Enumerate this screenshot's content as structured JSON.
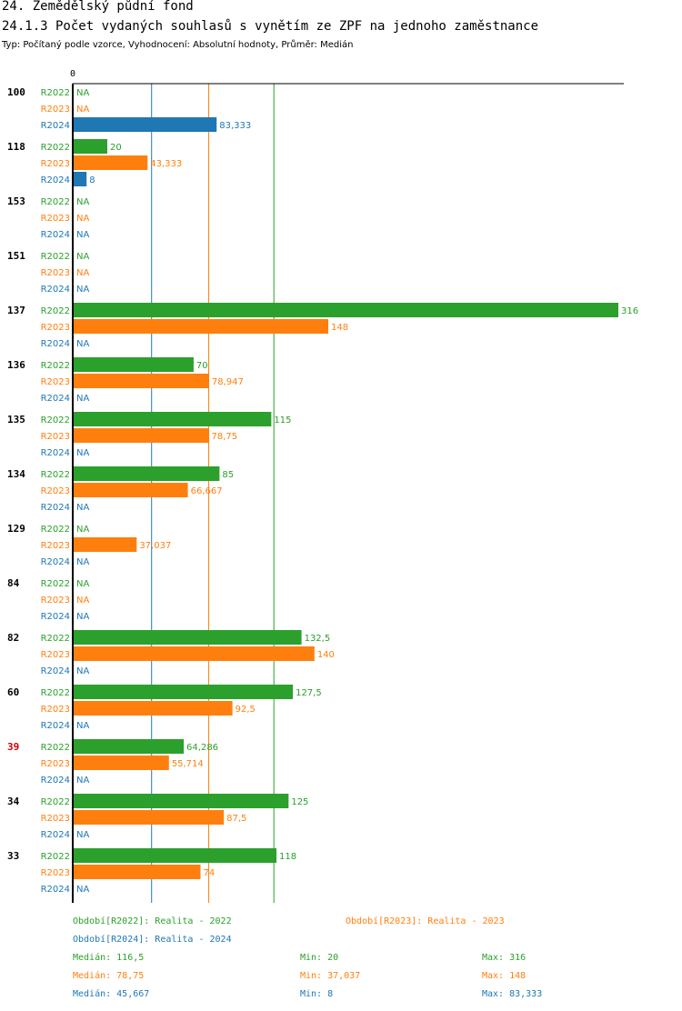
{
  "section_title": "24. Zemědělský půdní fond",
  "chart_title": "24.1.3 Počet vydaných souhlasů s vynětím ze ZPF na jednoho zaměstnance",
  "subtitle": "Typ: Počítaný podle vzorce, Vyhodnocení: Absolutní hodnoty, Průměr: Medián",
  "colors": {
    "R2022": "#2ca02c",
    "R2023": "#ff7f0e",
    "R2024": "#1f77b4",
    "highlight": "#cc0000"
  },
  "chart_data": {
    "type": "bar",
    "orientation": "horizontal",
    "axis_zero_label": "0",
    "xlim": [
      0,
      316
    ],
    "na_label": "NA",
    "categories": [
      "100",
      "118",
      "153",
      "151",
      "137",
      "136",
      "135",
      "134",
      "129",
      "84",
      "82",
      "60",
      "39",
      "34",
      "33"
    ],
    "highlight_category": "39",
    "series": [
      {
        "name": "R2022",
        "values": [
          null,
          20,
          null,
          null,
          316,
          70,
          115,
          85,
          null,
          null,
          132.5,
          127.5,
          64.286,
          125,
          118
        ],
        "labels": [
          "NA",
          "20",
          "NA",
          "NA",
          "316",
          "70",
          "115",
          "85",
          "NA",
          "NA",
          "132,5",
          "127,5",
          "64,286",
          "125",
          "118"
        ]
      },
      {
        "name": "R2023",
        "values": [
          null,
          43.333,
          null,
          null,
          148,
          78.947,
          78.75,
          66.667,
          37.037,
          null,
          140,
          92.5,
          55.714,
          87.5,
          74
        ],
        "labels": [
          "NA",
          "43,333",
          "NA",
          "NA",
          "148",
          "78,947",
          "78,75",
          "66,667",
          "37,037",
          "NA",
          "140",
          "92,5",
          "55,714",
          "87,5",
          "74"
        ]
      },
      {
        "name": "R2024",
        "values": [
          83.333,
          8,
          null,
          null,
          null,
          null,
          null,
          null,
          null,
          null,
          null,
          null,
          null,
          null,
          null
        ],
        "labels": [
          "83,333",
          "8",
          "NA",
          "NA",
          "NA",
          "NA",
          "NA",
          "NA",
          "NA",
          "NA",
          "NA",
          "NA",
          "NA",
          "NA",
          "NA"
        ]
      }
    ],
    "reference_lines": [
      {
        "series": "R2024",
        "value": 45.667
      },
      {
        "series": "R2023",
        "value": 78.75
      },
      {
        "series": "R2022",
        "value": 116.5
      }
    ]
  },
  "legend": {
    "period_2022": "Období[R2022]: Realita - 2022",
    "period_2023": "Období[R2023]: Realita - 2023",
    "period_2024": "Období[R2024]: Realita - 2024",
    "stats": [
      {
        "median": "Medián: 116,5",
        "min": "Min: 20",
        "max": "Max: 316"
      },
      {
        "median": "Medián: 78,75",
        "min": "Min: 37,037",
        "max": "Max: 148"
      },
      {
        "median": "Medián: 45,667",
        "min": "Min: 8",
        "max": "Max: 83,333"
      }
    ]
  }
}
